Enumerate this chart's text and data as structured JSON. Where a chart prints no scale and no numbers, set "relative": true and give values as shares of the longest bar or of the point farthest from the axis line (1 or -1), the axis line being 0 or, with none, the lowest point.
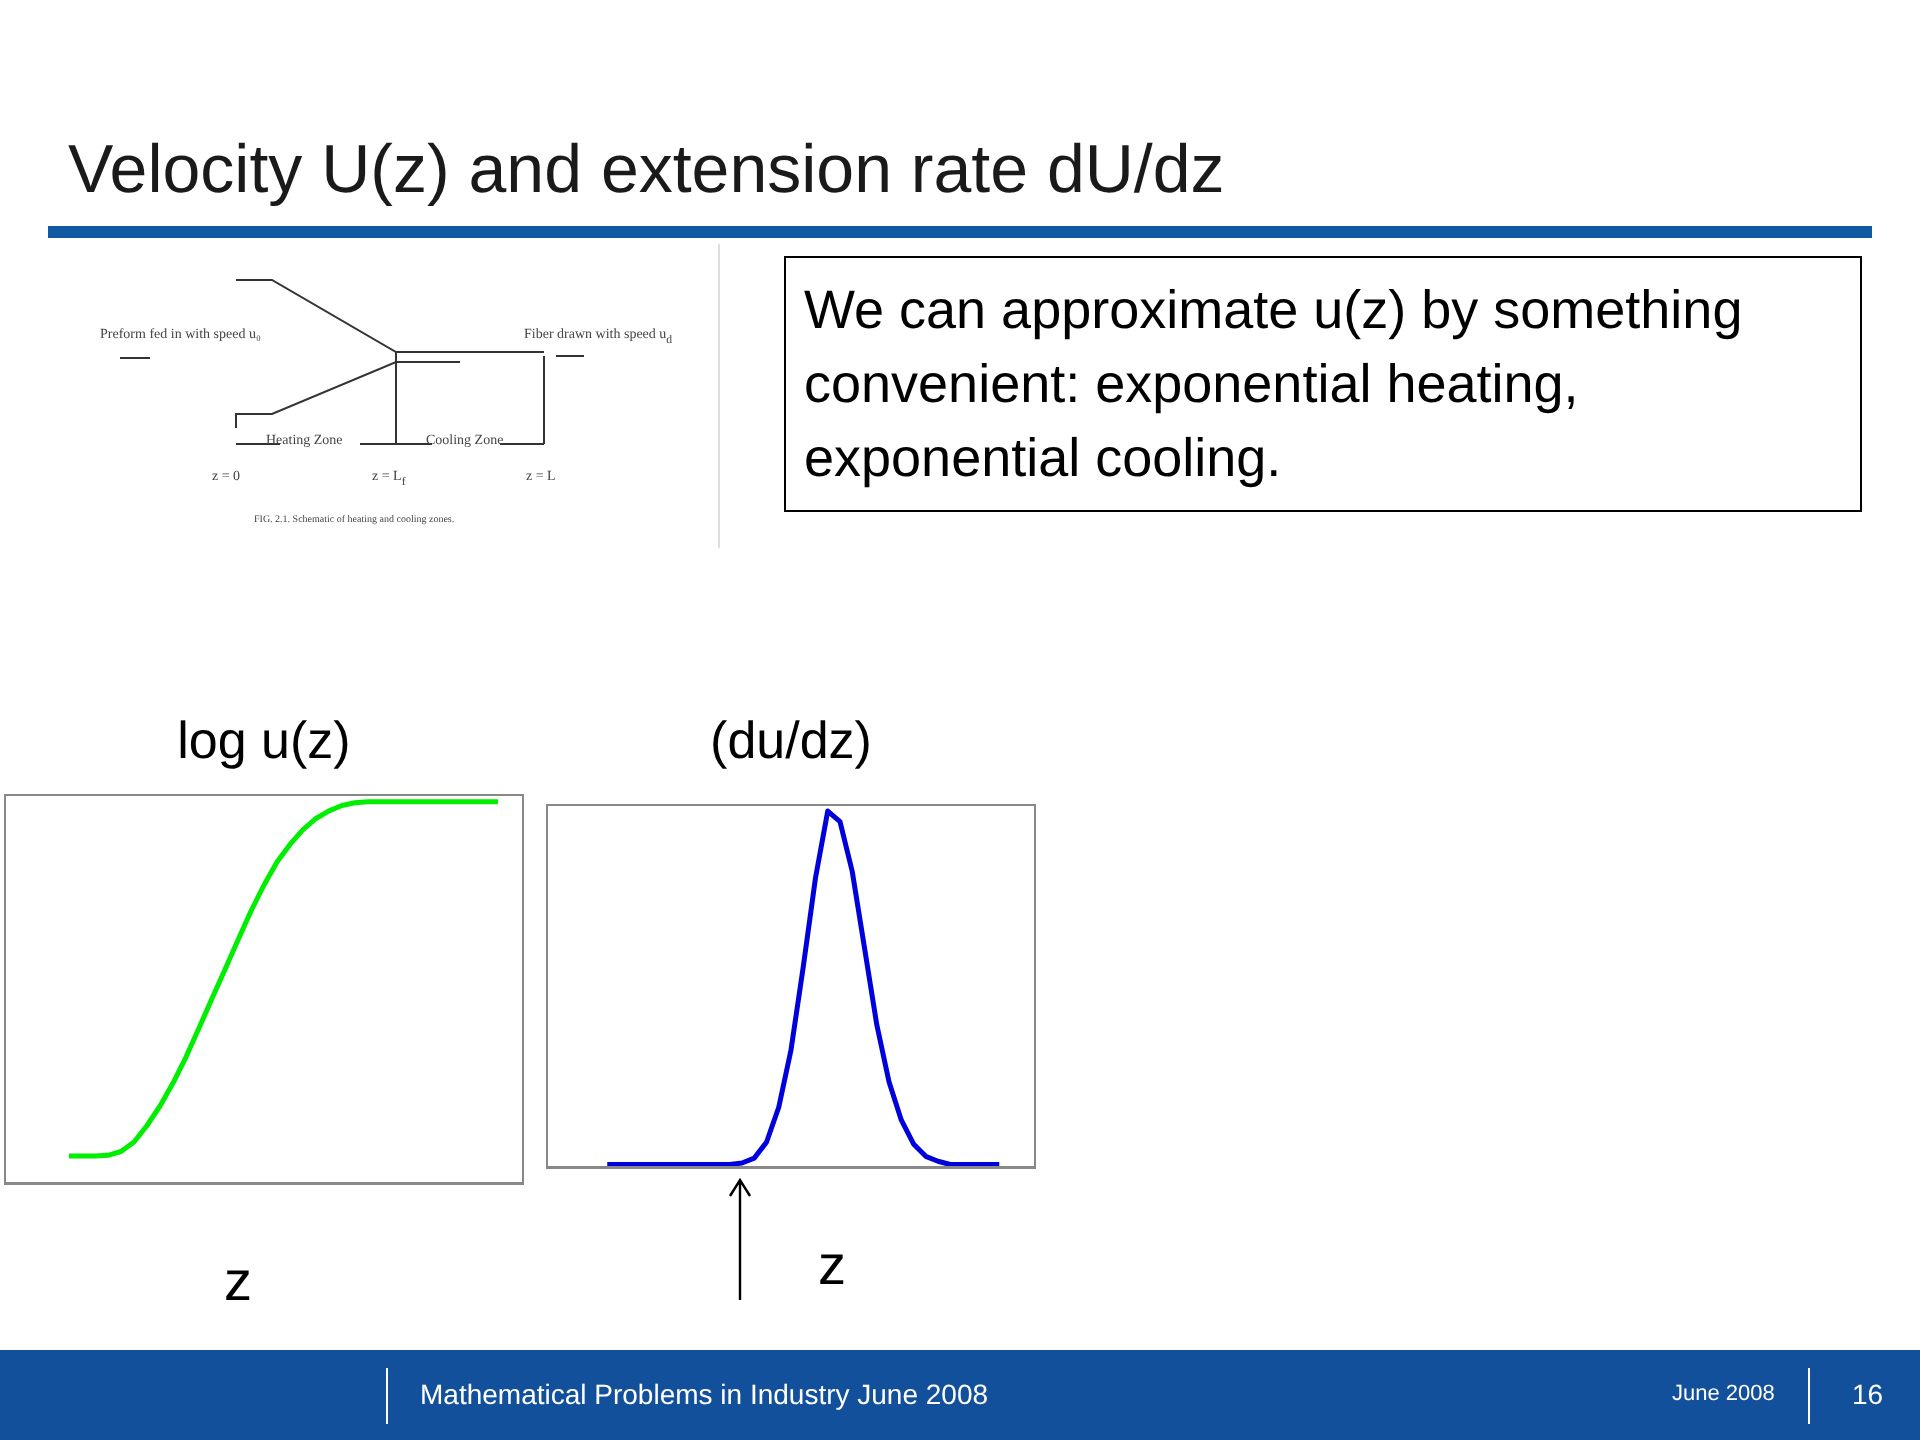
{
  "chart_data": [
    {
      "type": "other",
      "title": "Velocity U(z) and extension rate dU/dz",
      "annotations": [
        "We can approximate  u(z) by something convenient: exponential heating, exponential  cooling.",
        "Preform fed in with speed u₀",
        "Fiber drawn with speed u$_{d}$",
        "Heating Zone",
        "Cooling Zone",
        "z = 0",
        "z = L$_{f}$",
        "z = L",
        "FIG. 2.1. Schematic of heating and cooling zones.",
        "Mathematical Problems in Industry June 2008",
        "June  2008",
        "16"
      ]
    },
    {
      "type": "line",
      "title": "log u(z)",
      "xlabel": "z",
      "relative": true,
      "tick_labels": false,
      "categories": [
        null,
        null,
        null,
        null,
        null,
        null,
        null,
        null,
        null,
        null,
        null,
        null,
        null,
        null,
        null,
        null,
        null,
        null,
        null,
        null,
        null,
        null,
        null,
        null,
        null,
        null,
        null,
        null,
        null,
        null,
        null,
        null,
        null,
        null,
        null,
        null,
        null,
        null,
        null,
        null,
        null
      ],
      "series": [
        {
          "color": "#00ee00",
          "values": [
            null,
            null,
            null,
            null,
            null,
            0.073,
            0.073,
            0.073,
            0.075,
            0.085,
            0.11,
            0.153,
            0.204,
            0.264,
            0.332,
            0.408,
            0.485,
            0.561,
            0.638,
            0.714,
            0.782,
            0.842,
            0.888,
            0.927,
            0.956,
            0.976,
            0.99,
            0.997,
            1,
            1,
            1,
            1,
            1,
            1,
            1,
            1,
            1,
            1,
            1,
            null,
            null
          ]
        }
      ]
    },
    {
      "type": "line",
      "title": "(du/dz)",
      "xlabel": "z",
      "relative": true,
      "tick_labels": false,
      "categories": [
        null,
        null,
        null,
        null,
        null,
        null,
        null,
        null,
        null,
        null,
        null,
        null,
        null,
        null,
        null,
        null,
        null,
        null,
        null,
        null,
        null,
        null,
        null,
        null,
        null,
        null,
        null,
        null,
        null,
        null,
        null,
        null,
        null,
        null,
        null,
        null,
        null,
        null,
        null,
        null,
        null
      ],
      "series": [
        {
          "color": "#0000dd",
          "values": [
            null,
            null,
            null,
            null,
            null,
            0,
            0,
            0,
            0,
            0,
            0,
            0,
            0,
            0,
            0,
            0,
            0.004,
            0.018,
            0.063,
            0.162,
            0.324,
            0.559,
            0.811,
            1,
            0.97,
            0.829,
            0.613,
            0.396,
            0.234,
            0.126,
            0.058,
            0.023,
            0.009,
            0,
            0,
            0,
            0,
            0,
            null,
            null,
            null
          ]
        }
      ]
    }
  ]
}
